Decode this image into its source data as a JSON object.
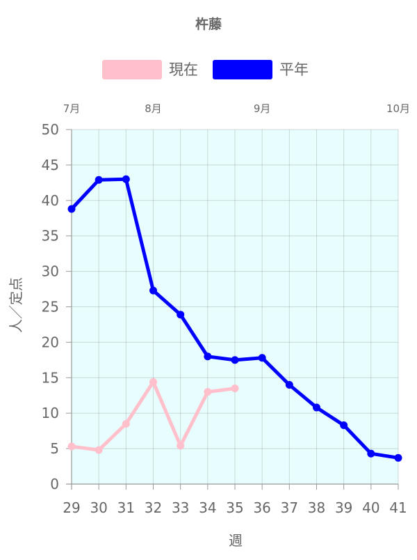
{
  "chart_data": {
    "type": "line",
    "title": "杵藤",
    "xlabel": "週",
    "ylabel": "人／定点",
    "x": [
      29,
      30,
      31,
      32,
      33,
      34,
      35,
      36,
      37,
      38,
      39,
      40,
      41
    ],
    "xlim": [
      29,
      41
    ],
    "ylim": [
      0,
      50
    ],
    "yticks": [
      0,
      5,
      10,
      15,
      20,
      25,
      30,
      35,
      40,
      45,
      50
    ],
    "grid": true,
    "legend_position": "top",
    "plot_background": "#e8fdfd",
    "month_labels": [
      {
        "label": "7月",
        "x": 29
      },
      {
        "label": "8月",
        "x": 32
      },
      {
        "label": "9月",
        "x": 36
      },
      {
        "label": "10月",
        "x": 41
      }
    ],
    "series": [
      {
        "name": "現在",
        "color": "#ffc0cb",
        "values": [
          5.3,
          4.8,
          8.5,
          14.4,
          5.4,
          13.0,
          13.5,
          null,
          null,
          null,
          null,
          null,
          null
        ]
      },
      {
        "name": "平年",
        "color": "#0000ff",
        "values": [
          38.8,
          42.9,
          43.0,
          27.3,
          23.9,
          18.0,
          17.5,
          17.8,
          14.0,
          10.8,
          8.3,
          4.3,
          3.7
        ]
      }
    ]
  }
}
